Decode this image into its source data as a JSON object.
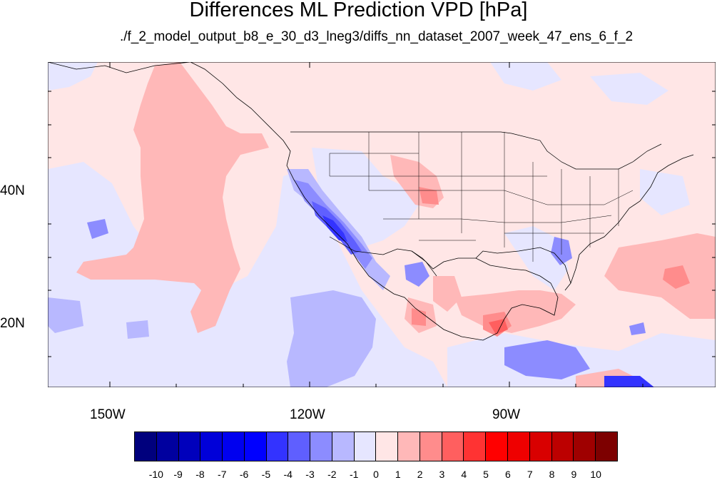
{
  "title": "Differences ML Prediction VPD [hPa]",
  "subtitle": "./f_2_model_output_b8_e_30_d3_lneg3/diffs_nn_dataset_2007_week_47_ens_6_f_2",
  "map": {
    "longitude_range": [
      -160,
      -60
    ],
    "latitude_range": [
      10,
      59
    ],
    "lat_ticks": [
      {
        "label": "40N",
        "value": 40
      },
      {
        "label": "20N",
        "value": 20
      }
    ],
    "lon_ticks": [
      {
        "label": "150W",
        "value": -150
      },
      {
        "label": "120W",
        "value": -120
      },
      {
        "label": "90W",
        "value": -90
      }
    ]
  },
  "colorbar": {
    "labels": [
      "-10",
      "-9",
      "-8",
      "-7",
      "-6",
      "-5",
      "-4",
      "-3",
      "-2",
      "-1",
      "0",
      "1",
      "2",
      "3",
      "4",
      "5",
      "6",
      "7",
      "8",
      "9",
      "10"
    ],
    "colors": [
      "#00007d",
      "#00009f",
      "#0000bc",
      "#0000d9",
      "#0000ef",
      "#0000ff",
      "#3333ff",
      "#5f5fff",
      "#8c8cff",
      "#b8b8ff",
      "#e6e6ff",
      "#ffe6e6",
      "#ffb8b8",
      "#ff8c8c",
      "#ff5f5f",
      "#ff3333",
      "#ff0000",
      "#ef0000",
      "#d90000",
      "#bc0000",
      "#9f0000",
      "#7d0000"
    ]
  }
}
